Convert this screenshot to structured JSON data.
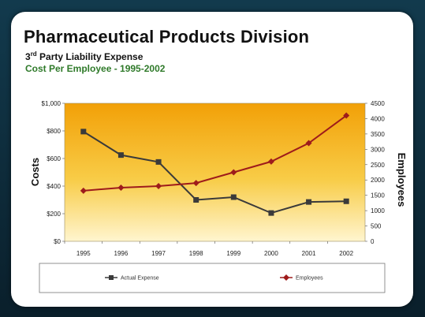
{
  "slide": {
    "title": "Pharmaceutical Products Division",
    "subtitle_ordinal": "3",
    "subtitle_suffix": "rd",
    "subtitle_rest": " Party Liability Expense",
    "subtitle2": "Cost Per Employee - 1995-2002"
  },
  "chart_data": {
    "type": "line",
    "x": [
      "1995",
      "1996",
      "1997",
      "1998",
      "1999",
      "2000",
      "2001",
      "2002"
    ],
    "ylabel": "Costs",
    "y2label": "Employees",
    "ylim": [
      0,
      1000
    ],
    "y2lim": [
      0,
      4500
    ],
    "yticks": [
      "$0",
      "$200",
      "$400",
      "$600",
      "$800",
      "$1,000"
    ],
    "y2ticks": [
      "0",
      "500",
      "1000",
      "1500",
      "2000",
      "2500",
      "3000",
      "3500",
      "4000",
      "4500"
    ],
    "legend_position": "bottom",
    "series": [
      {
        "name": "Actual Expense",
        "axis": "left",
        "color": "#3a3a3a",
        "marker": "square",
        "values": [
          795,
          625,
          575,
          300,
          320,
          205,
          285,
          290
        ]
      },
      {
        "name": "Employees",
        "axis": "right",
        "color": "#9e1b1b",
        "marker": "diamond",
        "values": [
          1650,
          1750,
          1800,
          1900,
          2250,
          2600,
          3200,
          4100
        ]
      }
    ]
  }
}
